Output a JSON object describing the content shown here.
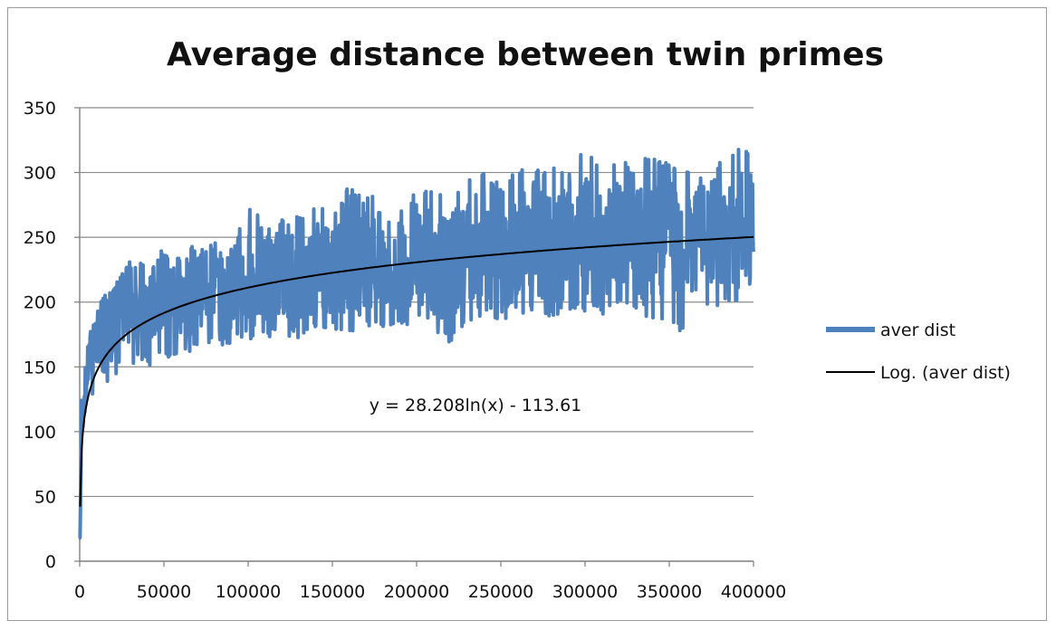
{
  "chart_data": {
    "type": "line",
    "title": "Average distance between twin primes",
    "xlabel": "",
    "ylabel": "",
    "xlim": [
      0,
      400000
    ],
    "ylim": [
      0,
      350
    ],
    "x_ticks": [
      "0",
      "50000",
      "100000",
      "150000",
      "200000",
      "250000",
      "300000",
      "350000",
      "400000"
    ],
    "y_ticks": [
      "0",
      "50",
      "100",
      "150",
      "200",
      "250",
      "300",
      "350"
    ],
    "grid": "horizontal",
    "legend_position": "right",
    "series": [
      {
        "name": "aver dist",
        "color": "#4f81bd",
        "x": [
          200,
          1000,
          2000,
          4000,
          6000,
          8000,
          10000,
          14000,
          18000,
          22000,
          26000,
          30000,
          36000,
          42000,
          48000,
          55000,
          62000,
          70000,
          78000,
          86000,
          94000,
          100000,
          110000,
          120000,
          130000,
          140000,
          150000,
          160000,
          170000,
          180000,
          190000,
          200000,
          210000,
          220000,
          230000,
          240000,
          250000,
          260000,
          270000,
          280000,
          290000,
          300000,
          310000,
          320000,
          330000,
          340000,
          350000,
          360000,
          370000,
          380000,
          390000,
          395000,
          400000
        ],
        "y": [
          18,
          95,
          120,
          140,
          160,
          165,
          170,
          185,
          180,
          190,
          195,
          200,
          205,
          195,
          210,
          205,
          200,
          210,
          215,
          205,
          220,
          215,
          220,
          225,
          215,
          230,
          225,
          220,
          235,
          230,
          225,
          240,
          230,
          225,
          240,
          245,
          235,
          240,
          250,
          235,
          245,
          250,
          240,
          255,
          245,
          240,
          260,
          245,
          250,
          255,
          250,
          260,
          245
        ],
        "range_note": "noisy band",
        "band_low": [
          18,
          85,
          105,
          120,
          125,
          128,
          130,
          140,
          138,
          145,
          150,
          150,
          155,
          150,
          160,
          155,
          160,
          165,
          168,
          165,
          170,
          172,
          170,
          175,
          172,
          180,
          178,
          175,
          182,
          180,
          178,
          185,
          180,
          165,
          185,
          190,
          185,
          188,
          192,
          185,
          190,
          192,
          188,
          195,
          190,
          188,
          185,
          172,
          190,
          195,
          200,
          205,
          210
        ],
        "band_high": [
          30,
          130,
          150,
          165,
          180,
          185,
          190,
          205,
          210,
          220,
          225,
          235,
          230,
          225,
          240,
          235,
          240,
          245,
          245,
          250,
          255,
          280,
          260,
          265,
          270,
          275,
          270,
          290,
          280,
          285,
          275,
          285,
          290,
          280,
          295,
          300,
          290,
          305,
          300,
          310,
          305,
          320,
          300,
          310,
          305,
          315,
          310,
          305,
          300,
          310,
          320,
          325,
          295
        ]
      },
      {
        "name": "Log. (aver dist)",
        "color": "#000000",
        "type": "trendline",
        "formula": "log",
        "a": 28.208,
        "b": -113.61
      }
    ],
    "annotations": [
      {
        "text": "y = 28.208ln(x) - 113.61",
        "x": 210000,
        "y": 122
      }
    ]
  }
}
